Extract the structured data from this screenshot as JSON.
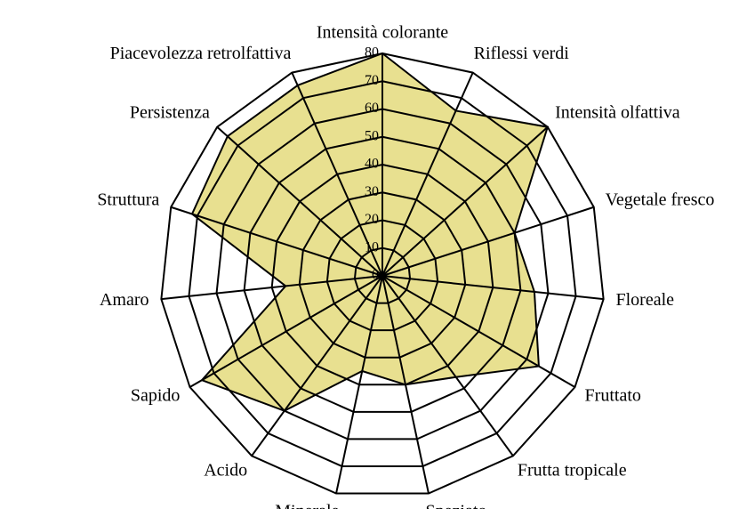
{
  "chart_data": {
    "type": "radar",
    "categories": [
      "Intensità colorante",
      "Riflessi verdi",
      "Intensità olfattiva",
      "Vegetale fresco",
      "Floreale",
      "Fruttato",
      "Frutta tropicale",
      "Speziato",
      "Minerale",
      "Acido",
      "Sapido",
      "Amaro",
      "Struttura",
      "Persistenza",
      "Piacevolezza retrolfattiva"
    ],
    "values": [
      80,
      65,
      80,
      50,
      55,
      65,
      45,
      40,
      35,
      60,
      75,
      35,
      72,
      75,
      75
    ],
    "color": "#e8e090",
    "rlim": [
      0,
      80
    ],
    "rticks": [
      0,
      10,
      20,
      30,
      40,
      50,
      60,
      70,
      80
    ],
    "grid": true
  }
}
